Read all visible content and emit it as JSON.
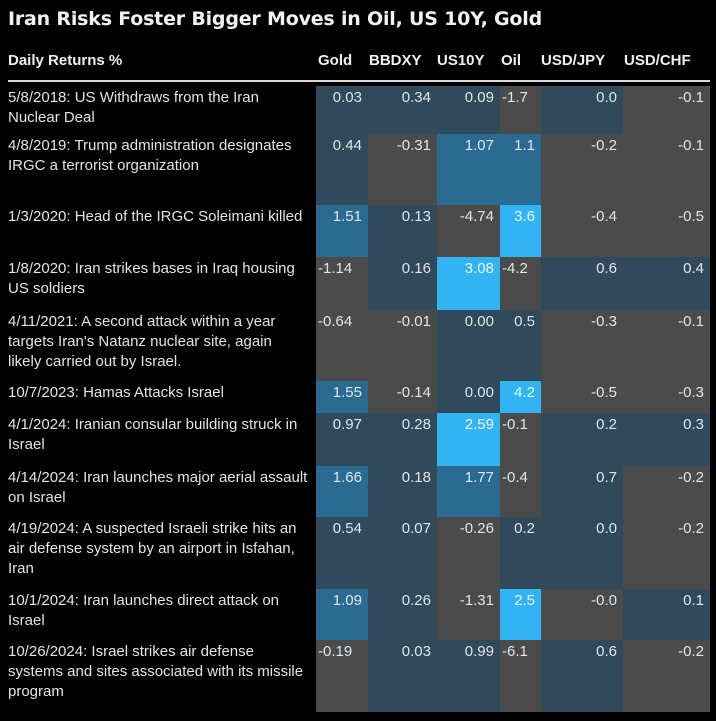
{
  "title": "Iran Risks Foster Bigger Moves in Oil, US 10Y, Gold",
  "chart_data": {
    "type": "heatmap",
    "title": "Iran Risks Foster Bigger Moves in Oil, US 10Y, Gold",
    "row_header": "Daily Returns %",
    "columns": [
      "Gold",
      "BBDXY",
      "US10Y",
      "Oil",
      "USD/JPY",
      "USD/CHF"
    ],
    "colors": {
      "negative": "#4b4b4b",
      "low": "#30495b",
      "mid": "#2b6b92",
      "high": "#32b4f3",
      "background": "#000000"
    },
    "rows": [
      {
        "event": "5/8/2018: US Withdraws from the Iran Nuclear Deal",
        "values": [
          "0.03",
          "0.34",
          "0.09",
          "-1.7",
          "0.0",
          "-0.1"
        ]
      },
      {
        "event": "4/8/2019: Trump administration designates IRGC a terrorist organization",
        "values": [
          "0.44",
          "-0.31",
          "1.07",
          "1.1",
          "-0.2",
          "-0.1"
        ]
      },
      {
        "event": "1/3/2020: Head of the IRGC Soleimani killed",
        "values": [
          "1.51",
          "0.13",
          "-4.74",
          "3.6",
          "-0.4",
          "-0.5"
        ]
      },
      {
        "event": "1/8/2020: Iran strikes bases in Iraq housing US soldiers",
        "values": [
          "-1.14",
          "0.16",
          "3.08",
          "-4.2",
          "0.6",
          "0.4"
        ]
      },
      {
        "event": "4/11/2021: A second attack within a year targets Iran's Natanz nuclear site, again likely carried out by Israel.",
        "values": [
          "-0.64",
          "-0.01",
          "0.00",
          "0.5",
          "-0.3",
          "-0.1"
        ]
      },
      {
        "event": "10/7/2023: Hamas Attacks Israel",
        "values": [
          "1.55",
          "-0.14",
          "0.00",
          "4.2",
          "-0.5",
          "-0.3"
        ]
      },
      {
        "event": "4/1/2024: Iranian consular building struck in Israel",
        "values": [
          "0.97",
          "0.28",
          "2.59",
          "-0.1",
          "0.2",
          "0.3"
        ]
      },
      {
        "event": "4/14/2024: Iran launches major aerial assault on Israel",
        "values": [
          "1.66",
          "0.18",
          "1.77",
          "-0.4",
          "0.7",
          "-0.2"
        ]
      },
      {
        "event": "4/19/2024: A suspected Israeli strike hits an air defense system by an airport in Isfahan, Iran",
        "values": [
          "0.54",
          "0.07",
          "-0.26",
          "0.2",
          "0.0",
          "-0.2"
        ]
      },
      {
        "event": "10/1/2024: Iran launches direct attack on Israel",
        "values": [
          "1.09",
          "0.26",
          "-1.31",
          "2.5",
          "-0.0",
          "0.1"
        ]
      },
      {
        "event": "10/26/2024: Israel strikes air defense systems and sites associated with its missile program",
        "values": [
          "-0.19",
          "0.03",
          "0.99",
          "-6.1",
          "0.6",
          "-0.2"
        ]
      }
    ]
  }
}
